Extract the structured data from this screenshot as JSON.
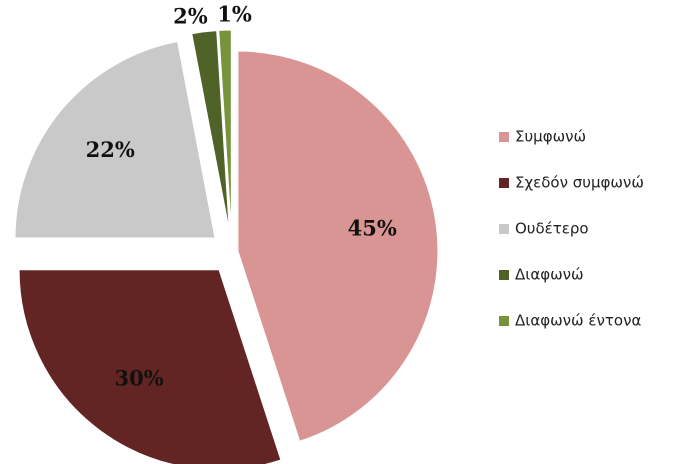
{
  "chart_data": {
    "type": "pie",
    "categories": [
      "Συμφωνώ",
      "Σχεδόν συμφωνώ",
      "Ουδέτερο",
      "Διαφωνώ",
      "Διαφωνώ έντονα"
    ],
    "values": [
      45,
      30,
      22,
      2,
      1
    ],
    "value_labels": [
      "45%",
      "30%",
      "22%",
      "2%",
      "1%"
    ],
    "colors": [
      "#d99594",
      "#632523",
      "#c9c9c9",
      "#4f6228",
      "#77933c"
    ],
    "legend": "right"
  }
}
